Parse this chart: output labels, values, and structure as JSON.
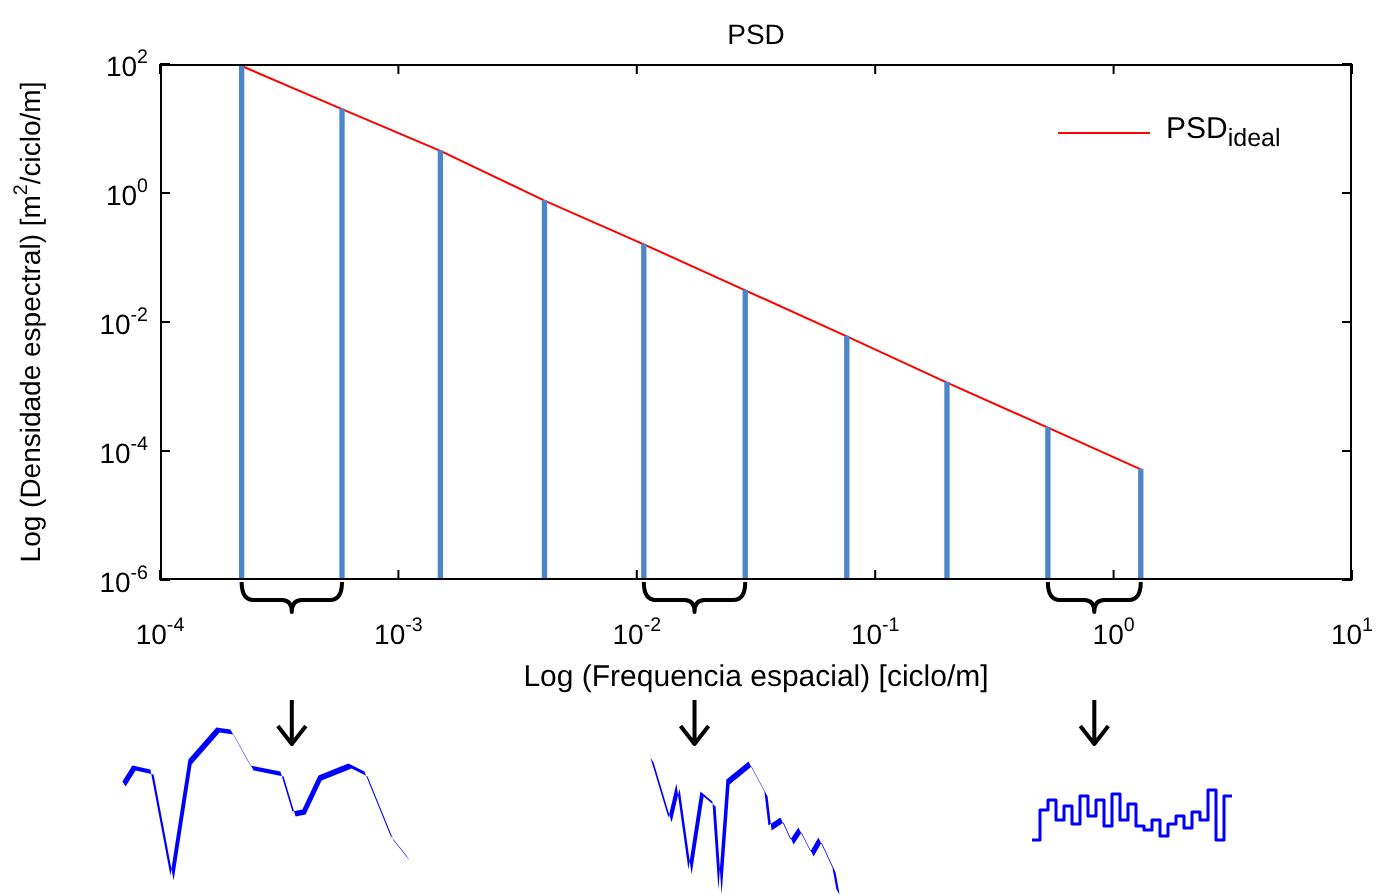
{
  "chart_data": {
    "type": "line",
    "title": "PSD",
    "xlabel": "Log (Frequencia espacial) [ciclo/m]",
    "ylabel": "Log (Densidade espectral) [m$^{2}$/ciclo/m]",
    "x": [
      0.00022,
      0.00058,
      0.0015,
      0.0041,
      0.0107,
      0.0285,
      0.076,
      0.2,
      0.53,
      1.3
    ],
    "series": [
      {
        "type": "bar",
        "color": "#4a86c8",
        "values": [
          93,
          20,
          4.5,
          0.76,
          0.16,
          0.031,
          0.006,
          0.00115,
          0.00023,
          5.2e-05
        ]
      },
      {
        "name": "PSD$_{ideal}$",
        "color": "#ff0000",
        "values": [
          93,
          20,
          4.5,
          0.76,
          0.16,
          0.031,
          0.006,
          0.00115,
          0.00023,
          5.2e-05
        ]
      }
    ],
    "log": "xy",
    "xlim": [
      0.0001,
      10
    ],
    "xticks": [
      {
        "value": 0.0001,
        "label": "10$^{-4}$"
      },
      {
        "value": 0.001,
        "label": "10$^{-3}$"
      },
      {
        "value": 0.01,
        "label": "10$^{-2}$"
      },
      {
        "value": 0.1,
        "label": "10$^{-1}$"
      },
      {
        "value": 1,
        "label": "10$^{0}$"
      },
      {
        "value": 10,
        "label": "10$^{1}$"
      }
    ],
    "ylim": [
      1e-06,
      100
    ],
    "yticks": [
      {
        "value": 1e-06,
        "label": "10$^{-6}$"
      },
      {
        "value": 0.0001,
        "label": "10$^{-4}$"
      },
      {
        "value": 0.01,
        "label": "10$^{-2}$"
      },
      {
        "value": 1,
        "label": "10$^{0}$"
      },
      {
        "value": 100,
        "label": "10$^{2}$"
      }
    ],
    "grid": false,
    "legend": "top right",
    "marker": "none",
    "line_style": "solid"
  }
}
